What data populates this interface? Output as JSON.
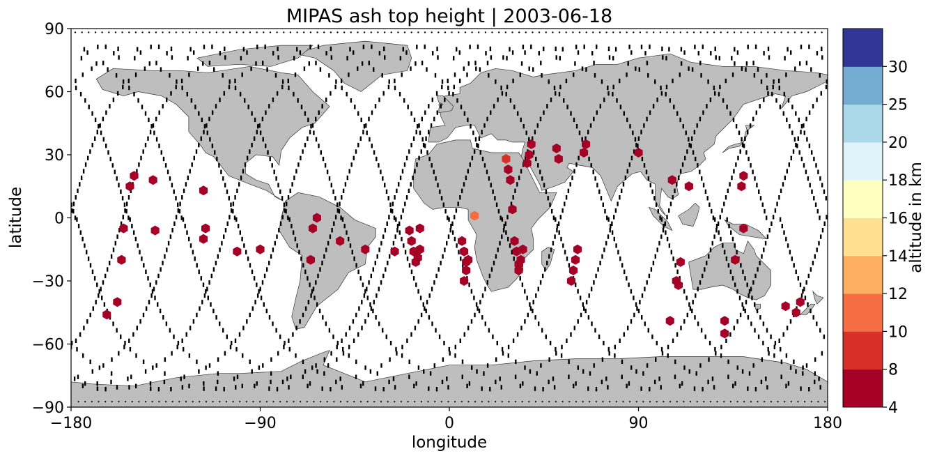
{
  "chart_data": {
    "type": "scatter",
    "title": "MIPAS ash top height | 2003-06-18",
    "xlabel": "longitude",
    "ylabel": "latitude",
    "xlim": [
      -180,
      180
    ],
    "ylim": [
      -90,
      90
    ],
    "xticks": [
      -180,
      -90,
      0,
      90,
      180
    ],
    "xtick_labels": [
      "−180",
      "−90",
      "0",
      "90",
      "180"
    ],
    "yticks": [
      90,
      60,
      30,
      0,
      -30,
      -60,
      -90
    ],
    "ytick_labels": [
      "90",
      "60",
      "30",
      "0",
      "−30",
      "−60",
      "−90"
    ],
    "land_color": "#bebebe",
    "track_color": "#000000",
    "marker": "hexagon",
    "colorbar": {
      "label": "altitude in km",
      "boundaries": [
        4,
        8,
        10,
        12,
        14,
        16,
        18,
        20,
        25,
        30
      ],
      "tick_labels": [
        "4",
        "8",
        "10",
        "12",
        "14",
        "16",
        "18",
        "20",
        "25",
        "30"
      ],
      "colors": [
        "#a50026",
        "#d73027",
        "#f46d43",
        "#fdae61",
        "#fee090",
        "#ffffbf",
        "#e0f3f8",
        "#abd9e9",
        "#74add1",
        "#313695"
      ]
    },
    "points": [
      {
        "lon": -150,
        "lat": 20,
        "alt": 6
      },
      {
        "lon": -152,
        "lat": 15,
        "alt": 6
      },
      {
        "lon": -141,
        "lat": 18,
        "alt": 6
      },
      {
        "lon": -155,
        "lat": -5,
        "alt": 6
      },
      {
        "lon": -140,
        "lat": -6,
        "alt": 6
      },
      {
        "lon": -156,
        "lat": -20,
        "alt": 6
      },
      {
        "lon": -158,
        "lat": -40,
        "alt": 6
      },
      {
        "lon": -163,
        "lat": -46,
        "alt": 6
      },
      {
        "lon": -117,
        "lat": 13,
        "alt": 6
      },
      {
        "lon": -116,
        "lat": -5,
        "alt": 6
      },
      {
        "lon": -117,
        "lat": -10,
        "alt": 6
      },
      {
        "lon": -101,
        "lat": -16,
        "alt": 6
      },
      {
        "lon": -90,
        "lat": -15,
        "alt": 6
      },
      {
        "lon": -63,
        "lat": 0,
        "alt": 6
      },
      {
        "lon": -65,
        "lat": -5,
        "alt": 6
      },
      {
        "lon": -52,
        "lat": -11,
        "alt": 6
      },
      {
        "lon": -66,
        "lat": -20,
        "alt": 6
      },
      {
        "lon": -40,
        "lat": -15,
        "alt": 6
      },
      {
        "lon": -26,
        "lat": -16,
        "alt": 6
      },
      {
        "lon": -14,
        "lat": -5,
        "alt": 6
      },
      {
        "lon": -19,
        "lat": -6,
        "alt": 6
      },
      {
        "lon": -18,
        "lat": -11,
        "alt": 6
      },
      {
        "lon": -17,
        "lat": -16,
        "alt": 6
      },
      {
        "lon": -14,
        "lat": -15,
        "alt": 6
      },
      {
        "lon": -15,
        "lat": -19,
        "alt": 6
      },
      {
        "lon": -16,
        "lat": -21,
        "alt": 6
      },
      {
        "lon": 27,
        "lat": 28,
        "alt": 9
      },
      {
        "lon": 28,
        "lat": 23,
        "alt": 6
      },
      {
        "lon": 29,
        "lat": 18,
        "alt": 6
      },
      {
        "lon": 30,
        "lat": 4,
        "alt": 6
      },
      {
        "lon": 12,
        "lat": 1,
        "alt": 10
      },
      {
        "lon": 39,
        "lat": 35,
        "alt": 6
      },
      {
        "lon": 38,
        "lat": 30,
        "alt": 6
      },
      {
        "lon": 37,
        "lat": 26,
        "alt": 6
      },
      {
        "lon": 51,
        "lat": 33,
        "alt": 6
      },
      {
        "lon": 52,
        "lat": 28,
        "alt": 6
      },
      {
        "lon": 65,
        "lat": 35,
        "alt": 6
      },
      {
        "lon": 64,
        "lat": 31,
        "alt": 6
      },
      {
        "lon": 90,
        "lat": 31,
        "alt": 6
      },
      {
        "lon": 6,
        "lat": -11,
        "alt": 6
      },
      {
        "lon": 7,
        "lat": -16,
        "alt": 6
      },
      {
        "lon": 9,
        "lat": -20,
        "alt": 6
      },
      {
        "lon": 8,
        "lat": -21,
        "alt": 6
      },
      {
        "lon": 8,
        "lat": -25,
        "alt": 6
      },
      {
        "lon": 7,
        "lat": -30,
        "alt": 6
      },
      {
        "lon": 31,
        "lat": -11,
        "alt": 6
      },
      {
        "lon": 32,
        "lat": -16,
        "alt": 6
      },
      {
        "lon": 35,
        "lat": -15,
        "alt": 6
      },
      {
        "lon": 34,
        "lat": -20,
        "alt": 6
      },
      {
        "lon": 33,
        "lat": -22,
        "alt": 6
      },
      {
        "lon": 33,
        "lat": -25,
        "alt": 6
      },
      {
        "lon": 61,
        "lat": -15,
        "alt": 6
      },
      {
        "lon": 60,
        "lat": -20,
        "alt": 6
      },
      {
        "lon": 59,
        "lat": -25,
        "alt": 6
      },
      {
        "lon": 58,
        "lat": -30,
        "alt": 6
      },
      {
        "lon": 106,
        "lat": 18,
        "alt": 6
      },
      {
        "lon": 114,
        "lat": 15,
        "alt": 6
      },
      {
        "lon": 110,
        "lat": -21,
        "alt": 6
      },
      {
        "lon": 108,
        "lat": -30,
        "alt": 6
      },
      {
        "lon": 109,
        "lat": -32,
        "alt": 6
      },
      {
        "lon": 105,
        "lat": -49,
        "alt": 6
      },
      {
        "lon": 140,
        "lat": -5,
        "alt": 6
      },
      {
        "lon": 136,
        "lat": -20,
        "alt": 6
      },
      {
        "lon": 131,
        "lat": -49,
        "alt": 6
      },
      {
        "lon": 131,
        "lat": -55,
        "alt": 6
      },
      {
        "lon": 140,
        "lat": 20,
        "alt": 6
      },
      {
        "lon": 139,
        "lat": 15,
        "alt": 6
      },
      {
        "lon": 160,
        "lat": -42,
        "alt": 6
      },
      {
        "lon": 167,
        "lat": -40,
        "alt": 6
      },
      {
        "lon": 165,
        "lat": -45,
        "alt": 6
      }
    ]
  }
}
